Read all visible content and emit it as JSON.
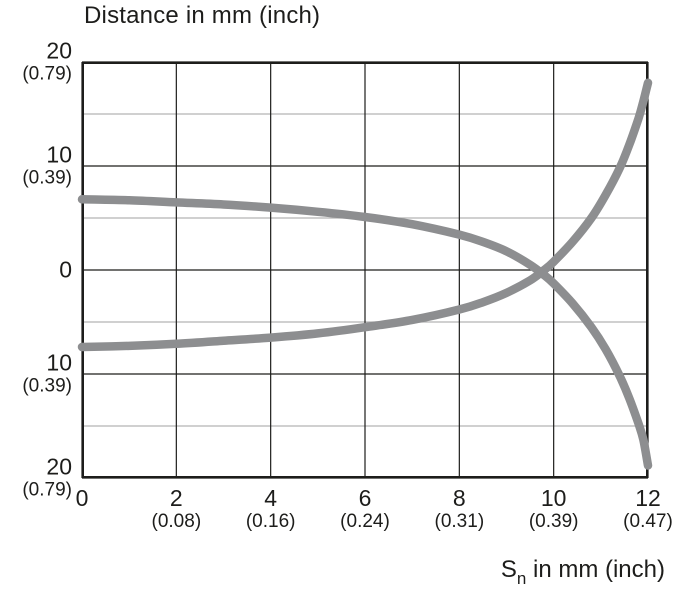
{
  "title": "Distance in mm (inch)",
  "x_axis_title": {
    "pre": "S",
    "sub": "n",
    "post": " in mm (inch)"
  },
  "chart_data": {
    "type": "line",
    "title": "Distance in mm (inch)",
    "xlabel": "Sn in mm (inch)",
    "ylabel": "Distance in mm (inch)",
    "xlim": [
      0,
      12
    ],
    "ylim": [
      -20,
      20
    ],
    "grid": true,
    "legend": "none",
    "x_ticks": [
      {
        "value": 0,
        "label": "0",
        "inch": ""
      },
      {
        "value": 2,
        "label": "2",
        "inch": "(0.08)"
      },
      {
        "value": 4,
        "label": "4",
        "inch": "(0.16)"
      },
      {
        "value": 6,
        "label": "6",
        "inch": "(0.24)"
      },
      {
        "value": 8,
        "label": "8",
        "inch": "(0.31)"
      },
      {
        "value": 10,
        "label": "10",
        "inch": "(0.39)"
      },
      {
        "value": 12,
        "label": "12",
        "inch": "(0.47)"
      }
    ],
    "y_ticks": [
      {
        "value": 20,
        "label": "20",
        "inch": "(0.79)"
      },
      {
        "value": 10,
        "label": "10",
        "inch": "(0.39)"
      },
      {
        "value": 0,
        "label": "0",
        "inch": ""
      },
      {
        "value": -10,
        "label": "10",
        "inch": "(0.39)"
      },
      {
        "value": -20,
        "label": "20",
        "inch": "(0.79)"
      }
    ],
    "y_minor_gridlines": [
      15,
      5,
      -5,
      -15
    ],
    "series": [
      {
        "name": "falling-curve",
        "points": [
          [
            0,
            6.8
          ],
          [
            1,
            6.7
          ],
          [
            2,
            6.5
          ],
          [
            3,
            6.3
          ],
          [
            4,
            6.0
          ],
          [
            5,
            5.6
          ],
          [
            6,
            5.1
          ],
          [
            7,
            4.4
          ],
          [
            8,
            3.4
          ],
          [
            8.5,
            2.7
          ],
          [
            9,
            1.8
          ],
          [
            9.5,
            0.5
          ],
          [
            9.8,
            -0.5
          ],
          [
            10,
            -1.3
          ],
          [
            10.4,
            -3.2
          ],
          [
            10.8,
            -5.5
          ],
          [
            11.1,
            -7.6
          ],
          [
            11.4,
            -10.2
          ],
          [
            11.6,
            -12.3
          ],
          [
            11.8,
            -14.8
          ],
          [
            11.9,
            -16.3
          ],
          [
            12,
            -18.8
          ]
        ]
      },
      {
        "name": "rising-curve",
        "points": [
          [
            0,
            -7.4
          ],
          [
            1,
            -7.3
          ],
          [
            2,
            -7.1
          ],
          [
            3,
            -6.8
          ],
          [
            4,
            -6.5
          ],
          [
            5,
            -6.1
          ],
          [
            6,
            -5.5
          ],
          [
            7,
            -4.8
          ],
          [
            8,
            -3.8
          ],
          [
            8.5,
            -3.1
          ],
          [
            9,
            -2.2
          ],
          [
            9.5,
            -1.0
          ],
          [
            9.8,
            0.0
          ],
          [
            10,
            0.8
          ],
          [
            10.4,
            2.7
          ],
          [
            10.8,
            5.0
          ],
          [
            11.1,
            7.2
          ],
          [
            11.4,
            9.8
          ],
          [
            11.6,
            12.0
          ],
          [
            11.8,
            14.6
          ],
          [
            11.9,
            16.2
          ],
          [
            12,
            18.0
          ]
        ]
      }
    ],
    "colors": {
      "curve": "#8d8e90",
      "major_grid": "#1d1d1b",
      "minor_grid": "#b3b3b3",
      "text": "#1d1d1b",
      "background": "#ffffff"
    }
  }
}
